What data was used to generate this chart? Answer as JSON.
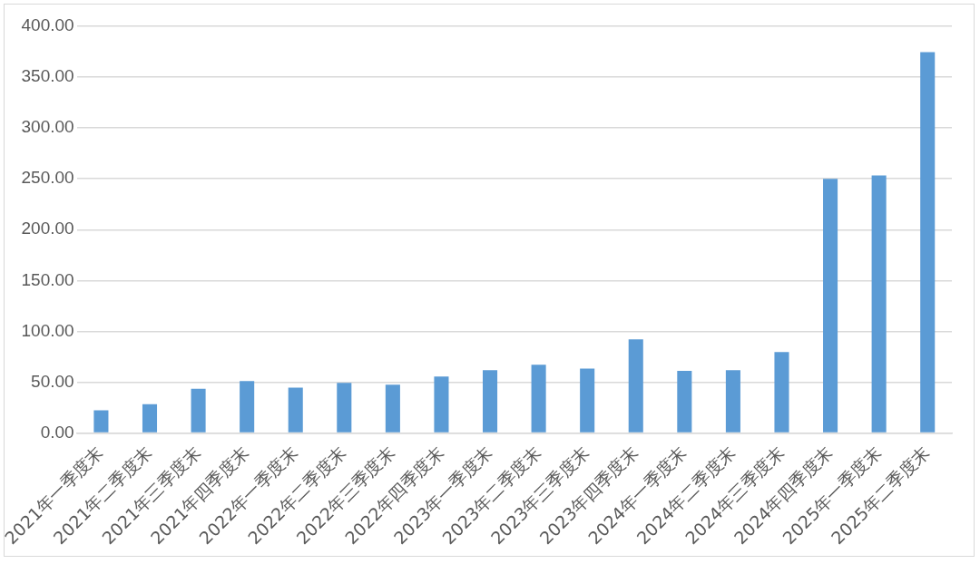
{
  "chart_data": {
    "type": "bar",
    "categories": [
      "2021年一季度末",
      "2021年二季度末",
      "2021年三季度末",
      "2021年四季度末",
      "2022年一季度末",
      "2022年二季度末",
      "2022年三季度末",
      "2022年四季度末",
      "2023年一季度末",
      "2023年二季度末",
      "2023年三季度末",
      "2023年四季度末",
      "2024年一季度末",
      "2024年二季度末",
      "2024年三季度末",
      "2024年四季度末",
      "2025年一季度末",
      "2025年二季度末"
    ],
    "values": [
      22.4,
      28.3,
      43.4,
      51,
      44.5,
      49.3,
      47.6,
      55.5,
      61.7,
      67.2,
      63.4,
      92,
      61,
      61.7,
      79.7,
      250,
      253.4,
      374.5
    ],
    "color": "#5b9bd5",
    "ylim": [
      0,
      400
    ],
    "yticks": [
      {
        "value": 0,
        "label": "0.00"
      },
      {
        "value": 50,
        "label": "50.00"
      },
      {
        "value": 100,
        "label": "100.00"
      },
      {
        "value": 150,
        "label": "150.00"
      },
      {
        "value": 200,
        "label": "200.00"
      },
      {
        "value": 250,
        "label": "250.00"
      },
      {
        "value": 300,
        "label": "300.00"
      },
      {
        "value": 350,
        "label": "350.00"
      },
      {
        "value": 400,
        "label": "400.00"
      }
    ],
    "grid": "y",
    "legend": false
  }
}
